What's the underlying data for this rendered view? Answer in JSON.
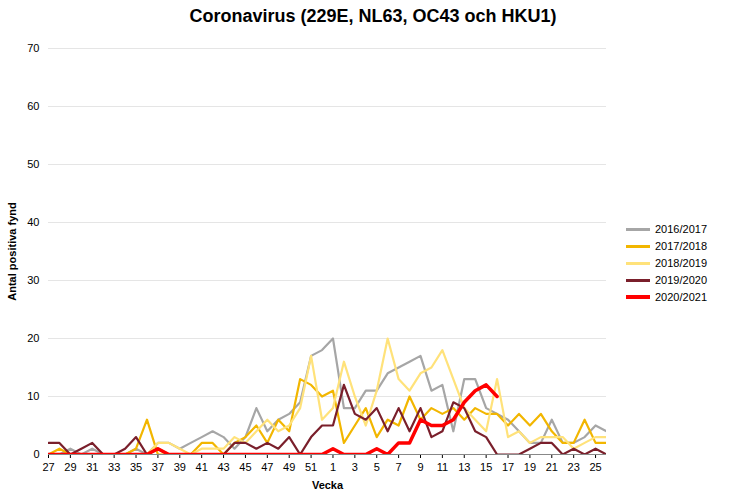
{
  "chart_data": {
    "type": "line",
    "title": "Coronavirus (229E, NL63, OC43 och HKU1)",
    "x_label": "Vecka",
    "y_label": "Antal positiva fynd",
    "categories": [
      "27",
      null,
      "29",
      null,
      "31",
      null,
      "33",
      null,
      "35",
      null,
      "37",
      null,
      "39",
      null,
      "41",
      null,
      "43",
      null,
      "45",
      null,
      "47",
      null,
      "49",
      null,
      "51",
      null,
      "1",
      null,
      "3",
      null,
      "5",
      null,
      "7",
      null,
      "9",
      null,
      "11",
      null,
      "13",
      null,
      "15",
      null,
      "17",
      null,
      "19",
      null,
      "21",
      null,
      "23",
      null,
      "25",
      null
    ],
    "ylim": [
      0,
      70
    ],
    "yticks": [
      0,
      10,
      20,
      30,
      40,
      50,
      60,
      70
    ],
    "grid": true,
    "legend": "right",
    "series": [
      {
        "name": "2016/2017",
        "color": "#a6a6a6",
        "values": [
          0,
          0,
          1,
          0,
          1,
          0,
          0,
          0,
          1,
          0,
          2,
          2,
          1,
          2,
          3,
          4,
          3,
          1,
          3,
          8,
          4,
          6,
          7,
          9,
          17,
          18,
          20,
          8,
          8,
          11,
          11,
          14,
          15,
          16,
          17,
          11,
          12,
          4,
          13,
          13,
          8,
          7,
          6,
          4,
          2,
          2,
          6,
          2,
          2,
          3,
          5,
          4
        ]
      },
      {
        "name": "2017/2018",
        "color": "#f2b600",
        "values": [
          0,
          1,
          0,
          0,
          0,
          0,
          0,
          0,
          1,
          6,
          0,
          0,
          0,
          0,
          2,
          2,
          0,
          2,
          3,
          5,
          2,
          6,
          4,
          13,
          12,
          10,
          11,
          2,
          5,
          8,
          3,
          6,
          5,
          10,
          6,
          8,
          7,
          8,
          6,
          8,
          7,
          7,
          5,
          7,
          5,
          7,
          4,
          2,
          2,
          6,
          2,
          2
        ]
      },
      {
        "name": "2018/2019",
        "color": "#ffe27a",
        "values": [
          0,
          0,
          0,
          0,
          0,
          0,
          0,
          0,
          0,
          0,
          2,
          2,
          1,
          0,
          1,
          1,
          1,
          3,
          2,
          4,
          6,
          4,
          5,
          8,
          17,
          6,
          8,
          16,
          10,
          5,
          11,
          20,
          13,
          11,
          14,
          15,
          18,
          13,
          8,
          6,
          4,
          13,
          3,
          4,
          2,
          3,
          3,
          3,
          1,
          2,
          3,
          3
        ]
      },
      {
        "name": "2019/2020",
        "color": "#7a1f2b",
        "values": [
          2,
          2,
          0,
          1,
          2,
          0,
          0,
          1,
          3,
          0,
          1,
          0,
          0,
          0,
          0,
          0,
          0,
          2,
          2,
          1,
          2,
          1,
          3,
          0,
          3,
          5,
          5,
          12,
          7,
          6,
          8,
          4,
          8,
          4,
          8,
          3,
          4,
          9,
          8,
          4,
          3,
          0,
          0,
          0,
          1,
          2,
          2,
          0,
          1,
          0,
          1,
          0
        ]
      },
      {
        "name": "2020/2021",
        "color": "#ff0000",
        "values": [
          0,
          0,
          0,
          0,
          0,
          0,
          0,
          0,
          0,
          0,
          1,
          0,
          0,
          0,
          0,
          0,
          0,
          0,
          0,
          0,
          0,
          0,
          0,
          0,
          0,
          0,
          1,
          0,
          0,
          0,
          1,
          0,
          2,
          2,
          6,
          5,
          5,
          6,
          9,
          11,
          12,
          10,
          null,
          null,
          null,
          null,
          null,
          null,
          null,
          null,
          null,
          null
        ]
      }
    ]
  }
}
